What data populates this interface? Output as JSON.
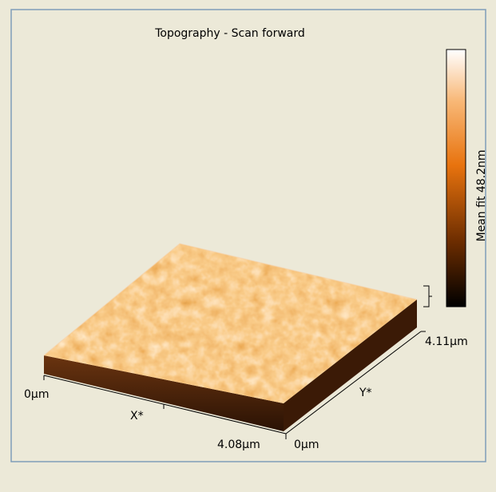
{
  "panel": {
    "title": "Topography - Scan forward",
    "colorbar": {
      "label": "Mean fit 48.2nm"
    },
    "axes": {
      "x_start": "0µm",
      "x_label": "X*",
      "x_end": "4.08µm",
      "y_start": "0µm",
      "y_label": "Y*",
      "y_end": "4.11µm"
    }
  }
}
